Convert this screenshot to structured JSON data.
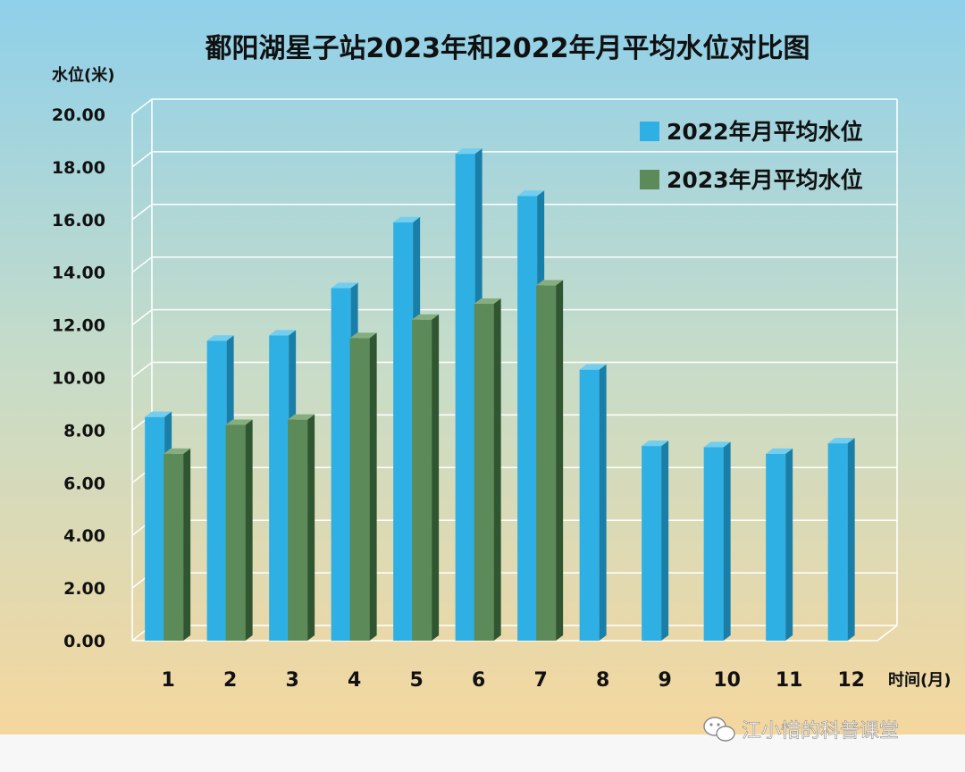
{
  "chart_data": {
    "type": "bar",
    "title": "鄱阳湖星子站2023年和2022年月平均水位对比图",
    "ylabel": "水位(米)",
    "xlabel": "时间(月)",
    "categories": [
      "1",
      "2",
      "3",
      "4",
      "5",
      "6",
      "7",
      "8",
      "9",
      "10",
      "11",
      "12"
    ],
    "ylim": [
      0,
      20
    ],
    "yticks": [
      "0.00",
      "2.00",
      "4.00",
      "6.00",
      "8.00",
      "10.00",
      "12.00",
      "14.00",
      "16.00",
      "18.00",
      "20.00"
    ],
    "grid": true,
    "legend_position": "top-right",
    "series": [
      {
        "name": "2022年月平均水位",
        "color": "#2fb0e4",
        "values": [
          8.5,
          11.4,
          11.6,
          13.4,
          15.9,
          18.5,
          16.9,
          10.3,
          7.4,
          7.35,
          7.1,
          7.5
        ]
      },
      {
        "name": "2023年月平均水位",
        "color": "#5c8a58",
        "values": [
          7.1,
          8.2,
          8.4,
          11.5,
          12.2,
          12.8,
          13.5,
          null,
          null,
          null,
          null,
          null
        ]
      }
    ]
  },
  "watermark": {
    "text": "江小惜的科普课堂",
    "icon": "wechat-icon"
  }
}
